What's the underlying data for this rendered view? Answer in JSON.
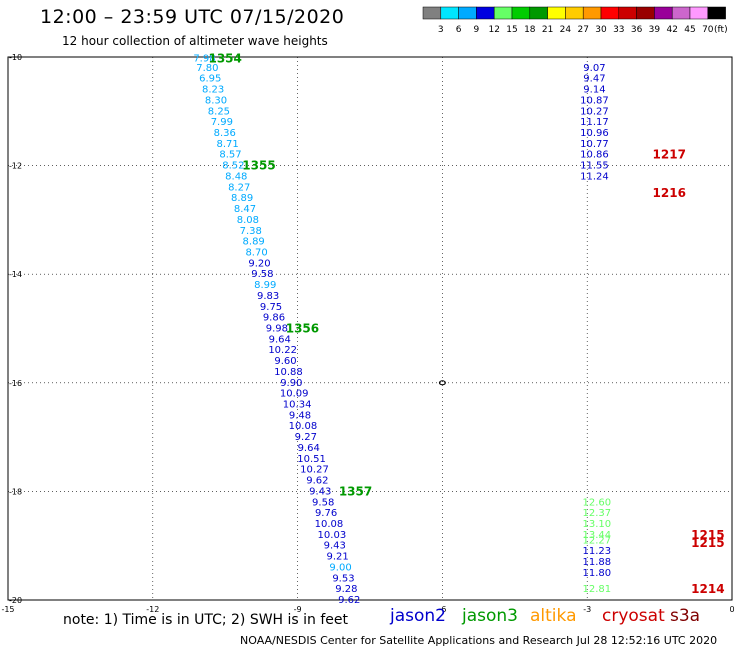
{
  "title": "12:00 – 23:59 UTC 07/15/2020",
  "subtitle": "12 hour collection of altimeter wave heights",
  "note": "note:  1) Time is in UTC; 2) SWH is in feet",
  "credit": "NOAA/NESDIS Center for Satellite Applications and Research    Jul 28 12:52:16 UTC 2020",
  "colorbar": {
    "unit": "(ft)",
    "labels": [
      "3",
      "6",
      "9",
      "12",
      "15",
      "18",
      "21",
      "24",
      "27",
      "30",
      "33",
      "36",
      "39",
      "42",
      "45",
      "70"
    ],
    "colors": [
      "#808080",
      "#00e5ff",
      "#00aaff",
      "#0000e0",
      "#66ff66",
      "#00cc00",
      "#009900",
      "#ffff00",
      "#ffcc00",
      "#ff9900",
      "#ff0000",
      "#cc0000",
      "#990000",
      "#990099",
      "#cc66cc",
      "#ff99ff",
      "#000000"
    ]
  },
  "legend": [
    {
      "name": "jason2",
      "color": "#0000cc"
    },
    {
      "name": "jason3",
      "color": "#009900"
    },
    {
      "name": "altika",
      "color": "#ff9900"
    },
    {
      "name": "cryosat",
      "color": "#cc0000"
    },
    {
      "name": "s3a",
      "color": "#800000"
    }
  ],
  "chart_data": {
    "type": "scatter",
    "xlim": [
      -15,
      0
    ],
    "ylim": [
      -20,
      -10
    ],
    "x_ticks": [
      "-15",
      "-12",
      "-9",
      "-6",
      "-3",
      "0"
    ],
    "y_ticks": [
      "-10",
      "-12",
      "-14",
      "-16",
      "-18",
      "-20"
    ],
    "grid": true,
    "series": [
      {
        "name": "jason3 pass 1",
        "points": [
          {
            "x": -10.93,
            "y": -10.03,
            "swh": "7.98",
            "c": "#00aaff"
          },
          {
            "x": -10.87,
            "y": -10.2,
            "swh": "7.80",
            "c": "#00aaff"
          },
          {
            "x": -10.81,
            "y": -10.4,
            "swh": "6.95",
            "c": "#00aaff"
          },
          {
            "x": -10.75,
            "y": -10.6,
            "swh": "8.23",
            "c": "#00aaff"
          },
          {
            "x": -10.69,
            "y": -10.8,
            "swh": "8.30",
            "c": "#00aaff"
          },
          {
            "x": -10.63,
            "y": -11.0,
            "swh": "8.25",
            "c": "#00aaff"
          },
          {
            "x": -10.57,
            "y": -11.2,
            "swh": "7.99",
            "c": "#00aaff"
          },
          {
            "x": -10.51,
            "y": -11.4,
            "swh": "8.36",
            "c": "#00aaff"
          },
          {
            "x": -10.45,
            "y": -11.6,
            "swh": "8.71",
            "c": "#00aaff"
          },
          {
            "x": -10.39,
            "y": -11.8,
            "swh": "8.57",
            "c": "#00aaff"
          },
          {
            "x": -10.33,
            "y": -12.0,
            "swh": "8.52",
            "c": "#00aaff"
          },
          {
            "x": -10.27,
            "y": -12.2,
            "swh": "8.48",
            "c": "#00aaff"
          },
          {
            "x": -10.21,
            "y": -12.4,
            "swh": "8.27",
            "c": "#00aaff"
          },
          {
            "x": -10.15,
            "y": -12.6,
            "swh": "8.89",
            "c": "#00aaff"
          },
          {
            "x": -10.09,
            "y": -12.8,
            "swh": "8.47",
            "c": "#00aaff"
          },
          {
            "x": -10.03,
            "y": -13.0,
            "swh": "8.08",
            "c": "#00aaff"
          },
          {
            "x": -9.97,
            "y": -13.2,
            "swh": "7.38",
            "c": "#00aaff"
          },
          {
            "x": -9.91,
            "y": -13.4,
            "swh": "8.89",
            "c": "#00aaff"
          },
          {
            "x": -9.85,
            "y": -13.6,
            "swh": "8.70",
            "c": "#00aaff"
          },
          {
            "x": -9.79,
            "y": -13.8,
            "swh": "9.20",
            "c": "#0000cc"
          },
          {
            "x": -9.73,
            "y": -14.0,
            "swh": "9.58",
            "c": "#0000cc"
          },
          {
            "x": -9.67,
            "y": -14.2,
            "swh": "8.99",
            "c": "#00aaff"
          },
          {
            "x": -9.61,
            "y": -14.4,
            "swh": "9.83",
            "c": "#0000cc"
          },
          {
            "x": -9.55,
            "y": -14.6,
            "swh": "9.75",
            "c": "#0000cc"
          },
          {
            "x": -9.49,
            "y": -14.8,
            "swh": "9.86",
            "c": "#0000cc"
          },
          {
            "x": -9.43,
            "y": -15.0,
            "swh": "9.98",
            "c": "#0000cc"
          },
          {
            "x": -9.37,
            "y": -15.2,
            "swh": "9.64",
            "c": "#0000cc"
          },
          {
            "x": -9.31,
            "y": -15.4,
            "swh": "10.22",
            "c": "#0000cc"
          },
          {
            "x": -9.25,
            "y": -15.6,
            "swh": "9.60",
            "c": "#0000cc"
          },
          {
            "x": -9.19,
            "y": -15.8,
            "swh": "10.88",
            "c": "#0000cc"
          },
          {
            "x": -9.13,
            "y": -16.0,
            "swh": "9.90",
            "c": "#0000cc"
          },
          {
            "x": -9.07,
            "y": -16.2,
            "swh": "10.09",
            "c": "#0000cc"
          },
          {
            "x": -9.01,
            "y": -16.4,
            "swh": "10.34",
            "c": "#0000cc"
          },
          {
            "x": -8.95,
            "y": -16.6,
            "swh": "9.48",
            "c": "#0000cc"
          },
          {
            "x": -8.89,
            "y": -16.8,
            "swh": "10.08",
            "c": "#0000cc"
          },
          {
            "x": -8.83,
            "y": -17.0,
            "swh": "9.27",
            "c": "#0000cc"
          },
          {
            "x": -8.77,
            "y": -17.2,
            "swh": "9.64",
            "c": "#0000cc"
          },
          {
            "x": -8.71,
            "y": -17.4,
            "swh": "10.51",
            "c": "#0000cc"
          },
          {
            "x": -8.65,
            "y": -17.6,
            "swh": "10.27",
            "c": "#0000cc"
          },
          {
            "x": -8.59,
            "y": -17.8,
            "swh": "9.62",
            "c": "#0000cc"
          },
          {
            "x": -8.53,
            "y": -18.0,
            "swh": "9.43",
            "c": "#0000cc"
          },
          {
            "x": -8.47,
            "y": -18.2,
            "swh": "9.58",
            "c": "#0000cc"
          },
          {
            "x": -8.41,
            "y": -18.4,
            "swh": "9.76",
            "c": "#0000cc"
          },
          {
            "x": -8.35,
            "y": -18.6,
            "swh": "10.08",
            "c": "#0000cc"
          },
          {
            "x": -8.29,
            "y": -18.8,
            "swh": "10.03",
            "c": "#0000cc"
          },
          {
            "x": -8.23,
            "y": -19.0,
            "swh": "9.43",
            "c": "#0000cc"
          },
          {
            "x": -8.17,
            "y": -19.2,
            "swh": "9.21",
            "c": "#0000cc"
          },
          {
            "x": -8.11,
            "y": -19.4,
            "swh": "9.00",
            "c": "#00aaff"
          },
          {
            "x": -8.05,
            "y": -19.6,
            "swh": "9.53",
            "c": "#0000cc"
          },
          {
            "x": -7.99,
            "y": -19.8,
            "swh": "9.28",
            "c": "#0000cc"
          },
          {
            "x": -7.93,
            "y": -20.0,
            "swh": "9.62",
            "c": "#0000cc"
          }
        ]
      },
      {
        "name": "cryosat pass",
        "points": [
          {
            "x": -2.85,
            "y": -10.2,
            "swh": "9.07",
            "c": "#0000cc"
          },
          {
            "x": -2.85,
            "y": -10.4,
            "swh": "9.47",
            "c": "#0000cc"
          },
          {
            "x": -2.85,
            "y": -10.6,
            "swh": "9.14",
            "c": "#0000cc"
          },
          {
            "x": -2.85,
            "y": -10.8,
            "swh": "10.87",
            "c": "#0000cc"
          },
          {
            "x": -2.85,
            "y": -11.0,
            "swh": "10.27",
            "c": "#0000cc"
          },
          {
            "x": -2.85,
            "y": -11.2,
            "swh": "11.17",
            "c": "#0000cc"
          },
          {
            "x": -2.85,
            "y": -11.4,
            "swh": "10.96",
            "c": "#0000cc"
          },
          {
            "x": -2.85,
            "y": -11.6,
            "swh": "10.77",
            "c": "#0000cc"
          },
          {
            "x": -2.85,
            "y": -11.8,
            "swh": "10.86",
            "c": "#0000cc"
          },
          {
            "x": -2.85,
            "y": -12.0,
            "swh": "11.55",
            "c": "#0000cc"
          },
          {
            "x": -2.85,
            "y": -12.2,
            "swh": "11.24",
            "c": "#0000cc"
          }
        ]
      },
      {
        "name": "cryosat pass 2",
        "points": [
          {
            "x": -2.8,
            "y": -18.2,
            "swh": "12.60",
            "c": "#66ff66"
          },
          {
            "x": -2.8,
            "y": -18.4,
            "swh": "12.37",
            "c": "#66ff66"
          },
          {
            "x": -2.8,
            "y": -18.6,
            "swh": "13.10",
            "c": "#66ff66"
          },
          {
            "x": -2.8,
            "y": -18.8,
            "swh": "13.44",
            "c": "#66ff66"
          },
          {
            "x": -2.8,
            "y": -18.9,
            "swh": "12.27",
            "c": "#66ff66"
          },
          {
            "x": -2.8,
            "y": -19.1,
            "swh": "11.23",
            "c": "#0000cc"
          },
          {
            "x": -2.8,
            "y": -19.3,
            "swh": "11.88",
            "c": "#0000cc"
          },
          {
            "x": -2.8,
            "y": -19.5,
            "swh": "11.80",
            "c": "#0000cc"
          },
          {
            "x": -2.8,
            "y": -19.8,
            "swh": "12.81",
            "c": "#66ff66"
          }
        ]
      }
    ],
    "pass_labels": [
      {
        "text": "1354",
        "x": -10.5,
        "y": -10.03,
        "c": "#009900"
      },
      {
        "text": "1355",
        "x": -9.8,
        "y": -12.0,
        "c": "#009900"
      },
      {
        "text": "1356",
        "x": -8.9,
        "y": -15.0,
        "c": "#009900"
      },
      {
        "text": "1357",
        "x": -7.8,
        "y": -18.0,
        "c": "#009900"
      },
      {
        "text": "1217",
        "x": -1.3,
        "y": -11.8,
        "c": "#cc0000"
      },
      {
        "text": "1216",
        "x": -1.3,
        "y": -12.5,
        "c": "#cc0000"
      },
      {
        "text": "1215",
        "x": -0.5,
        "y": -18.8,
        "c": "#cc0000"
      },
      {
        "text": "1215",
        "x": -0.5,
        "y": -18.95,
        "c": "#cc0000"
      },
      {
        "text": "1214",
        "x": -0.5,
        "y": -19.8,
        "c": "#cc0000"
      }
    ]
  }
}
